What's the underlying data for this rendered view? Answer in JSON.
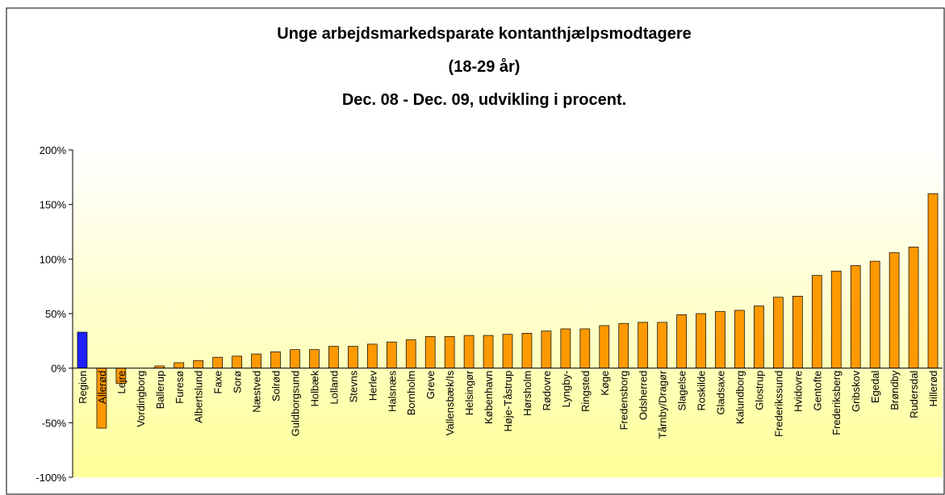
{
  "chart_data": {
    "type": "bar",
    "title": [
      "Unge arbejdsmarkedsparate kontanthjælpsmodtagere",
      "(18-29 år)",
      "Dec. 08 - Dec. 09, udvikling i procent."
    ],
    "categories": [
      "Region",
      "Allerød",
      "Lejre",
      "Vordingborg",
      "Ballerup",
      "Furesø",
      "Albertslund",
      "Faxe",
      "Sorø",
      "Næstved",
      "Solrød",
      "Guldborgsund",
      "Holbæk",
      "Lolland",
      "Stevns",
      "Herlev",
      "Halsnæs",
      "Bornholm",
      "Greve",
      "Vallensbæk/Is",
      "Helsingør",
      "København",
      "Høje-Tåstrup",
      "Hørsholm",
      "Rødovre",
      "Lyngby-",
      "Ringsted",
      "Køge",
      "Fredensborg",
      "Odsherred",
      "Tårnby/Dragør",
      "Slagelse",
      "Roskilde",
      "Gladsaxe",
      "Kalundborg",
      "Glostrup",
      "Frederikssund",
      "Hvidovre",
      "Gentofte",
      "Frederiksberg",
      "Gribskov",
      "Egedal",
      "Brøndby",
      "Rudersdal",
      "Hillerød"
    ],
    "values": [
      33,
      -55,
      -14,
      0,
      2,
      5,
      7,
      10,
      11,
      13,
      15,
      17,
      17,
      20,
      20,
      22,
      24,
      26,
      29,
      29,
      30,
      30,
      31,
      32,
      34,
      36,
      36,
      39,
      41,
      42,
      42,
      49,
      50,
      52,
      53,
      57,
      65,
      66,
      85,
      89,
      94,
      98,
      106,
      111,
      160
    ],
    "colors": [
      "#1f1fff",
      "#ff9900",
      "#ff9900",
      "#ff9900",
      "#ff9900",
      "#ff9900",
      "#ff9900",
      "#ff9900",
      "#ff9900",
      "#ff9900",
      "#ff9900",
      "#ff9900",
      "#ff9900",
      "#ff9900",
      "#ff9900",
      "#ff9900",
      "#ff9900",
      "#ff9900",
      "#ff9900",
      "#ff9900",
      "#ff9900",
      "#ff9900",
      "#ff9900",
      "#ff9900",
      "#ff9900",
      "#ff9900",
      "#ff9900",
      "#ff9900",
      "#ff9900",
      "#ff9900",
      "#ff9900",
      "#ff9900",
      "#ff9900",
      "#ff9900",
      "#ff9900",
      "#ff9900",
      "#ff9900",
      "#ff9900",
      "#ff9900",
      "#ff9900",
      "#ff9900",
      "#ff9900",
      "#ff9900",
      "#ff9900",
      "#ff9900"
    ],
    "ylim": [
      -100,
      200
    ],
    "yticks": [
      {
        "value": -100,
        "label": "-100%"
      },
      {
        "value": -50,
        "label": "-50%"
      },
      {
        "value": 0,
        "label": "0%"
      },
      {
        "value": 50,
        "label": "50%"
      },
      {
        "value": 100,
        "label": "100%"
      },
      {
        "value": 150,
        "label": "150%"
      },
      {
        "value": 200,
        "label": "200%"
      }
    ],
    "grid": false
  }
}
